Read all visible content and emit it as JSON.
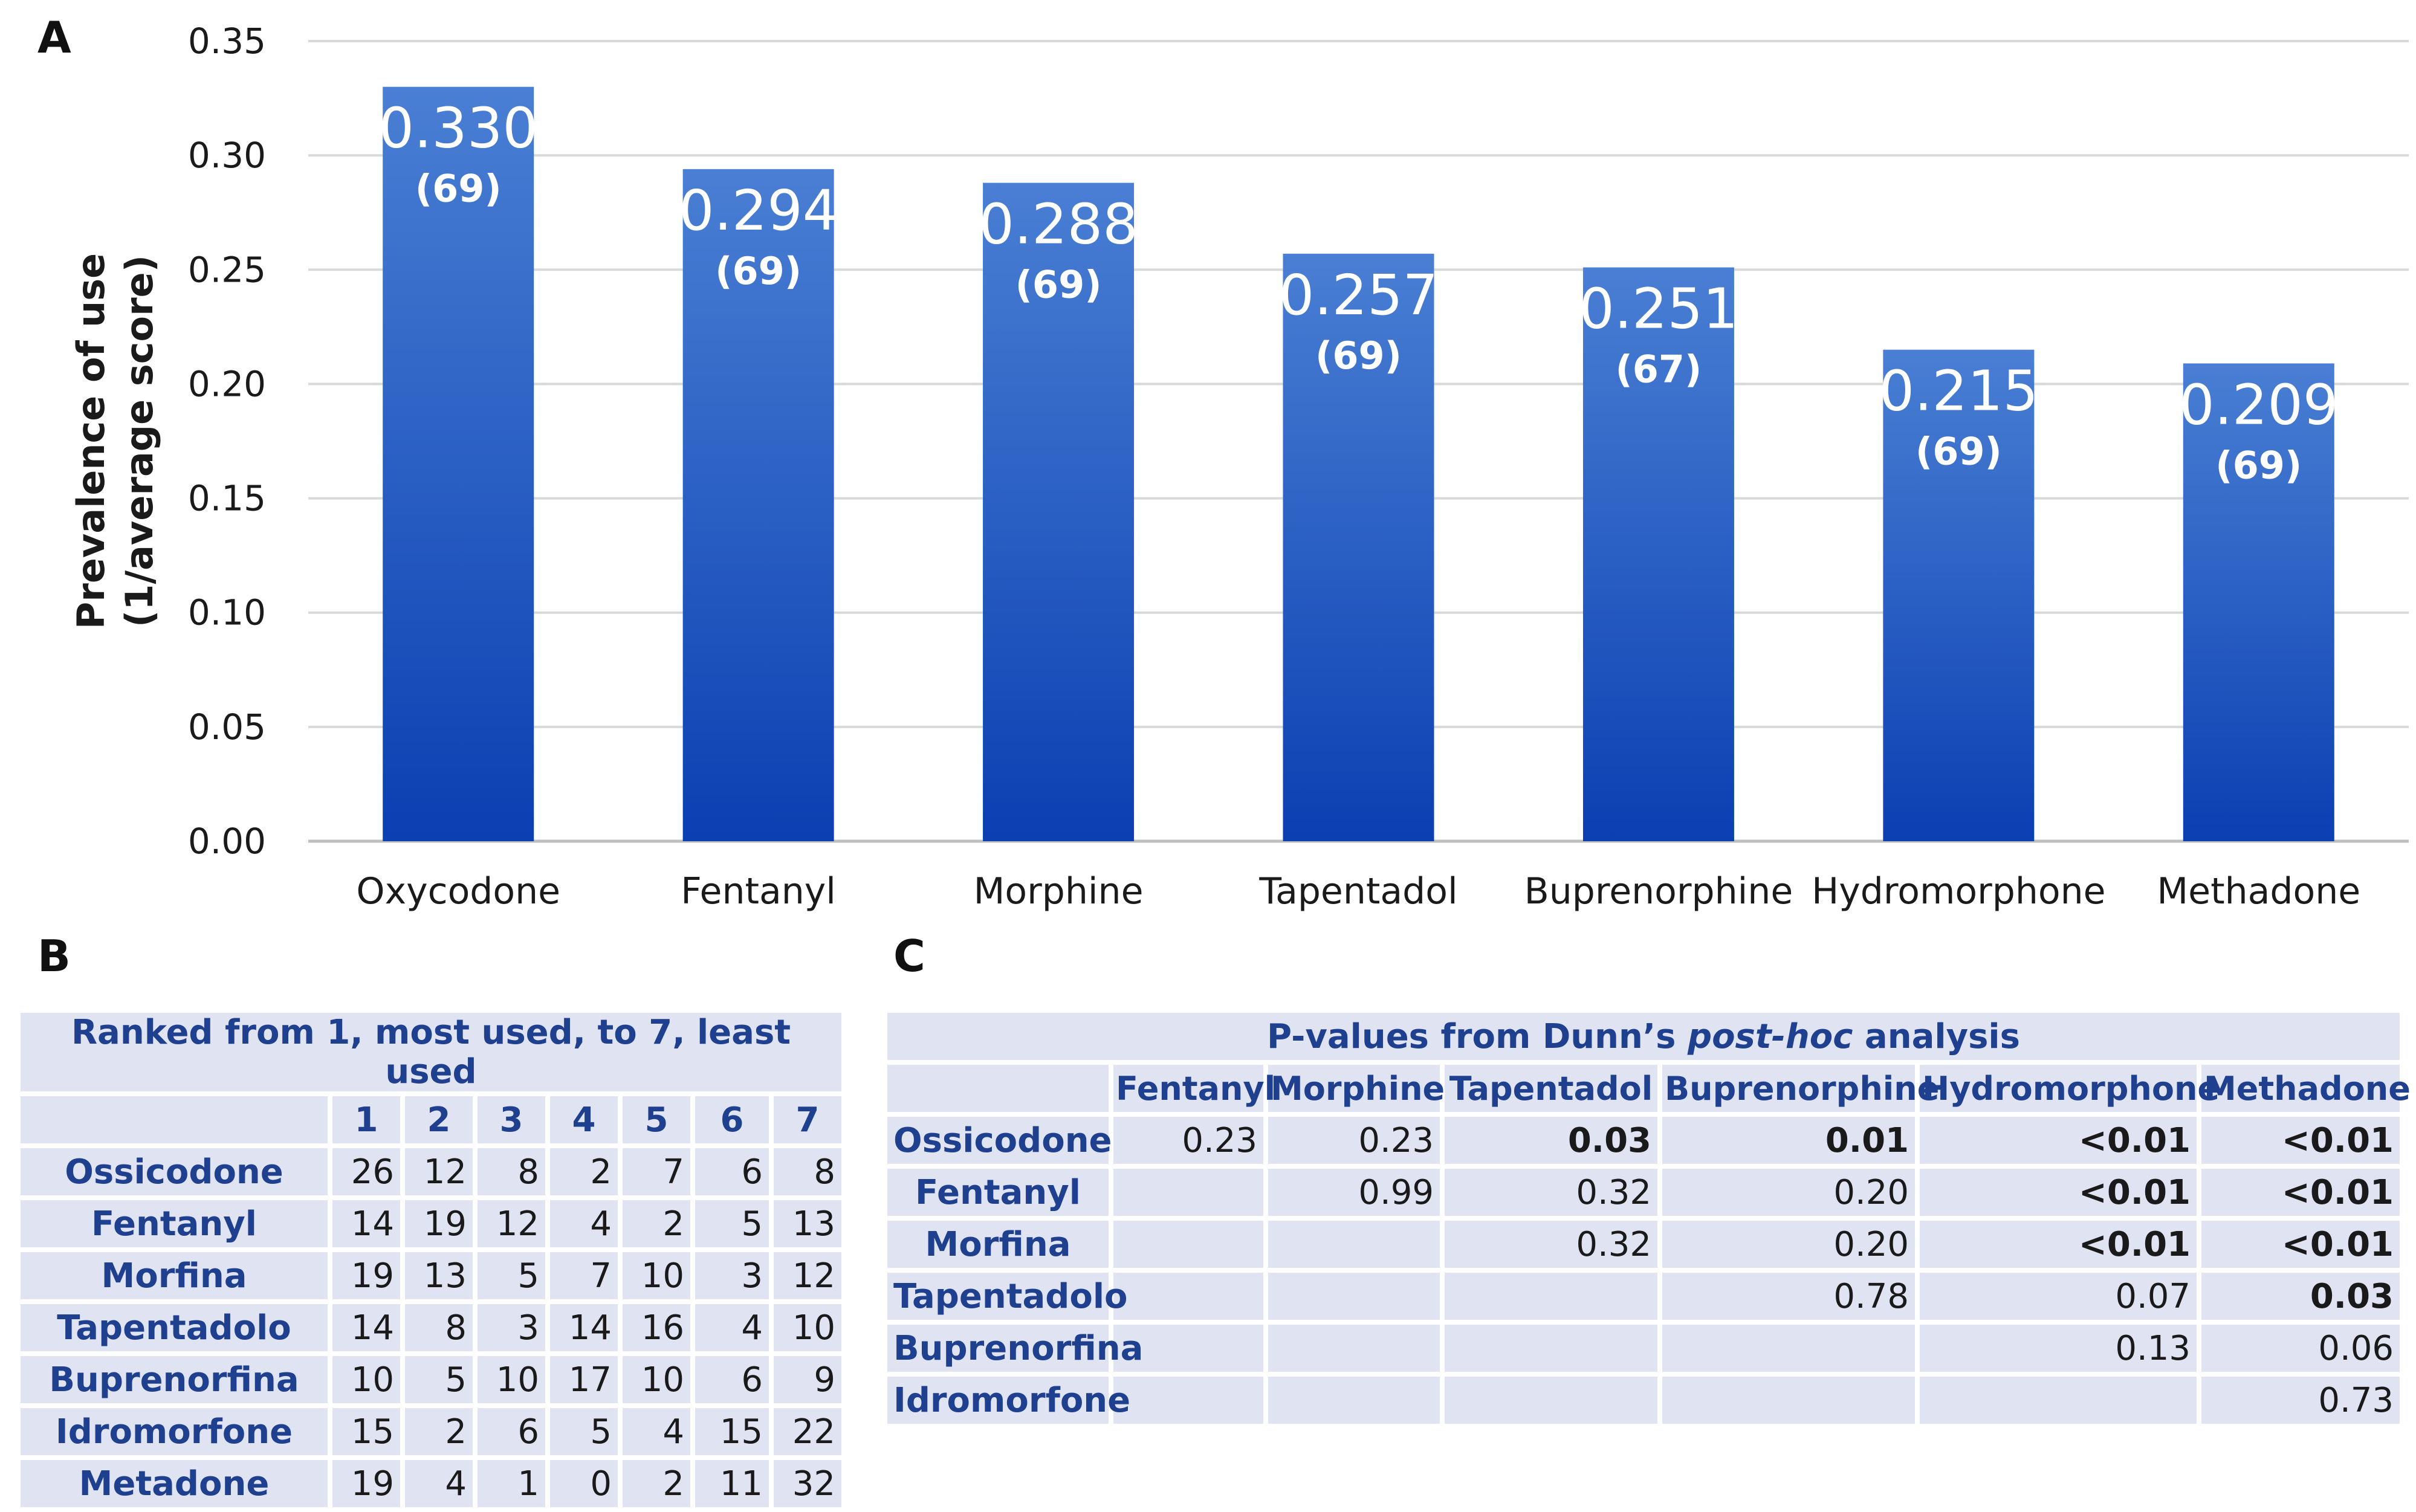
{
  "panels": {
    "a": "A",
    "b": "B",
    "c": "C"
  },
  "colors": {
    "bar_top": "#4a7fd4",
    "bar_bottom": "#0b3fb2",
    "table_bg": "#dfe3f2",
    "table_header_text": "#1f3f8f"
  },
  "chart_data": {
    "type": "bar",
    "title": "",
    "xlabel": "",
    "ylabel_line1": "Prevalence of use",
    "ylabel_line2": "(1/average score)",
    "ylim": [
      0,
      0.35
    ],
    "yticks": [
      "0.00",
      "0.05",
      "0.10",
      "0.15",
      "0.20",
      "0.25",
      "0.30",
      "0.35"
    ],
    "grid": true,
    "categories": [
      "Oxycodone",
      "Fentanyl",
      "Morphine",
      "Tapentadol",
      "Buprenorphine",
      "Hydromorphone",
      "Methadone"
    ],
    "values": [
      0.33,
      0.294,
      0.288,
      0.257,
      0.251,
      0.215,
      0.209
    ],
    "value_labels": [
      "0.330",
      "0.294",
      "0.288",
      "0.257",
      "0.251",
      "0.215",
      "0.209"
    ],
    "n_labels": [
      "(69)",
      "(69)",
      "(69)",
      "(69)",
      "(67)",
      "(69)",
      "(69)"
    ]
  },
  "table_b": {
    "caption": "Ranked from 1, most used, to 7, least used",
    "columns": [
      "1",
      "2",
      "3",
      "4",
      "5",
      "6",
      "7"
    ],
    "rows": [
      {
        "label": "Ossicodone",
        "values": [
          "26",
          "12",
          "8",
          "2",
          "7",
          "6",
          "8"
        ]
      },
      {
        "label": "Fentanyl",
        "values": [
          "14",
          "19",
          "12",
          "4",
          "2",
          "5",
          "13"
        ]
      },
      {
        "label": "Morfina",
        "values": [
          "19",
          "13",
          "5",
          "7",
          "10",
          "3",
          "12"
        ]
      },
      {
        "label": "Tapentadolo",
        "values": [
          "14",
          "8",
          "3",
          "14",
          "16",
          "4",
          "10"
        ]
      },
      {
        "label": "Buprenorfina",
        "values": [
          "10",
          "5",
          "10",
          "17",
          "10",
          "6",
          "9"
        ]
      },
      {
        "label": "Idromorfone",
        "values": [
          "15",
          "2",
          "6",
          "5",
          "4",
          "15",
          "22"
        ]
      },
      {
        "label": "Metadone",
        "values": [
          "19",
          "4",
          "1",
          "0",
          "2",
          "11",
          "32"
        ]
      }
    ]
  },
  "table_c": {
    "caption_pre": "P-values from Dunn’s ",
    "caption_em": "post-hoc",
    "caption_post": " analysis",
    "columns": [
      "Fentanyl",
      "Morphine",
      "Tapentadol",
      "Buprenorphine",
      "Hydromorphone",
      "Methadone"
    ],
    "rows": [
      {
        "label": "Ossicodone",
        "values": [
          "0.23",
          "0.23",
          "0.03",
          "0.01",
          "<0.01",
          "<0.01"
        ],
        "bold": [
          false,
          false,
          true,
          true,
          true,
          true
        ]
      },
      {
        "label": "Fentanyl",
        "values": [
          "",
          "0.99",
          "0.32",
          "0.20",
          "<0.01",
          "<0.01"
        ],
        "bold": [
          false,
          false,
          false,
          false,
          true,
          true
        ]
      },
      {
        "label": "Morfina",
        "values": [
          "",
          "",
          "0.32",
          "0.20",
          "<0.01",
          "<0.01"
        ],
        "bold": [
          false,
          false,
          false,
          false,
          true,
          true
        ]
      },
      {
        "label": "Tapentadolo",
        "values": [
          "",
          "",
          "",
          "0.78",
          "0.07",
          "0.03"
        ],
        "bold": [
          false,
          false,
          false,
          false,
          false,
          true
        ]
      },
      {
        "label": "Buprenorfina",
        "values": [
          "",
          "",
          "",
          "",
          "0.13",
          "0.06"
        ],
        "bold": [
          false,
          false,
          false,
          false,
          false,
          false
        ]
      },
      {
        "label": "Idromorfone",
        "values": [
          "",
          "",
          "",
          "",
          "",
          "0.73"
        ],
        "bold": [
          false,
          false,
          false,
          false,
          false,
          false
        ]
      }
    ]
  }
}
